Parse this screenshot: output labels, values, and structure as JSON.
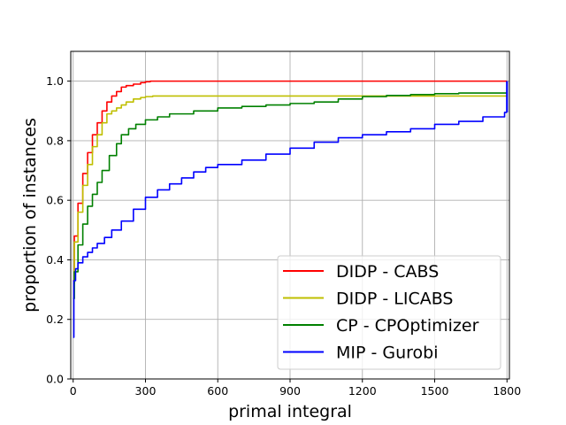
{
  "chart_data": {
    "type": "line",
    "xlabel": "primal integral",
    "ylabel": "proportion of instances",
    "xlim": [
      -10,
      1810
    ],
    "ylim": [
      0.0,
      1.1
    ],
    "xticks": [
      "0",
      "300",
      "600",
      "900",
      "1200",
      "1500",
      "1800"
    ],
    "yticks": [
      "0.0",
      "0.2",
      "0.4",
      "0.6",
      "0.8",
      "1.0"
    ],
    "grid": true,
    "legend_position": "lower right",
    "series": [
      {
        "name": "DIDP - CABS",
        "color": "#ff0000",
        "x": [
          0,
          5,
          20,
          40,
          60,
          80,
          100,
          120,
          140,
          160,
          180,
          200,
          220,
          250,
          280,
          300,
          320,
          340,
          500,
          1000,
          1500,
          1800
        ],
        "y": [
          0.33,
          0.48,
          0.59,
          0.69,
          0.76,
          0.82,
          0.86,
          0.9,
          0.93,
          0.95,
          0.965,
          0.98,
          0.985,
          0.99,
          0.995,
          0.998,
          1.0,
          1.0,
          1.0,
          1.0,
          1.0,
          1.0
        ]
      },
      {
        "name": "DIDP - LICABS",
        "color": "#bfbf00",
        "x": [
          0,
          5,
          20,
          40,
          60,
          80,
          100,
          120,
          140,
          160,
          180,
          200,
          220,
          250,
          280,
          300,
          330,
          400,
          800,
          1200,
          1500,
          1800
        ],
        "y": [
          0.32,
          0.46,
          0.56,
          0.65,
          0.72,
          0.78,
          0.82,
          0.86,
          0.89,
          0.9,
          0.91,
          0.92,
          0.93,
          0.94,
          0.945,
          0.948,
          0.95,
          0.95,
          0.95,
          0.95,
          0.95,
          0.95
        ]
      },
      {
        "name": "CP - CPOptimizer",
        "color": "#008000",
        "x": [
          0,
          5,
          20,
          40,
          60,
          80,
          100,
          120,
          150,
          180,
          200,
          230,
          260,
          300,
          350,
          400,
          500,
          600,
          700,
          800,
          900,
          1000,
          1100,
          1200,
          1300,
          1400,
          1500,
          1600,
          1800
        ],
        "y": [
          0.27,
          0.36,
          0.45,
          0.52,
          0.58,
          0.62,
          0.66,
          0.7,
          0.75,
          0.79,
          0.82,
          0.84,
          0.855,
          0.87,
          0.88,
          0.89,
          0.9,
          0.91,
          0.915,
          0.92,
          0.925,
          0.93,
          0.94,
          0.948,
          0.952,
          0.955,
          0.958,
          0.96,
          0.96
        ]
      },
      {
        "name": "MIP - Gurobi",
        "color": "#0000ff",
        "x": [
          0,
          3,
          10,
          20,
          40,
          60,
          80,
          100,
          130,
          160,
          200,
          250,
          300,
          350,
          400,
          450,
          500,
          550,
          600,
          700,
          800,
          900,
          1000,
          1100,
          1200,
          1300,
          1400,
          1500,
          1600,
          1700,
          1790,
          1800
        ],
        "y": [
          0.14,
          0.33,
          0.37,
          0.39,
          0.41,
          0.425,
          0.44,
          0.455,
          0.475,
          0.5,
          0.53,
          0.57,
          0.61,
          0.635,
          0.655,
          0.675,
          0.695,
          0.71,
          0.72,
          0.735,
          0.755,
          0.775,
          0.795,
          0.81,
          0.82,
          0.83,
          0.84,
          0.855,
          0.865,
          0.88,
          0.895,
          0.895
        ]
      }
    ]
  }
}
